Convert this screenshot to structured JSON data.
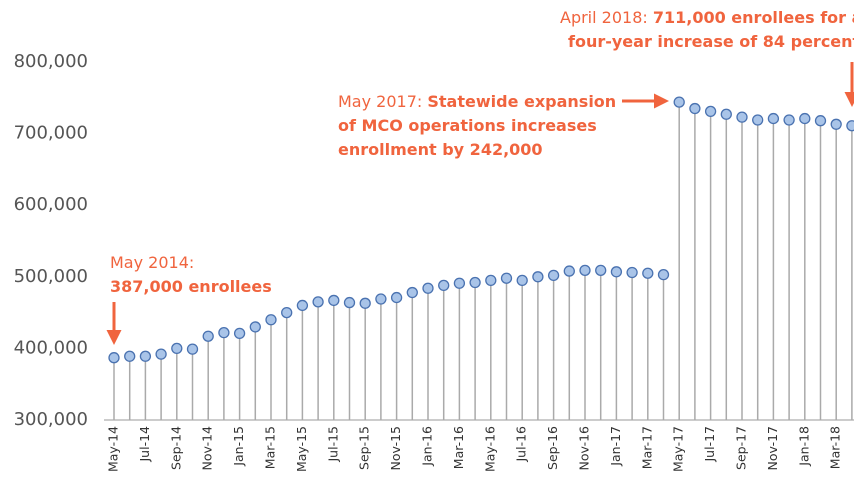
{
  "chart_data": {
    "type": "lollipop",
    "categories": [
      "May-14",
      null,
      "Jul-14",
      null,
      "Sep-14",
      null,
      "Nov-14",
      null,
      "Jan-15",
      null,
      "Mar-15",
      null,
      "May-15",
      null,
      "Jul-15",
      null,
      "Sep-15",
      null,
      "Nov-15",
      null,
      "Jan-16",
      null,
      "Mar-16",
      null,
      "May-16",
      null,
      "Jul-16",
      null,
      "Sep-16",
      null,
      "Nov-16",
      null,
      "Jan-17",
      null,
      "Mar-17",
      null,
      "May-17",
      null,
      "Jul-17",
      null,
      "Sep-17",
      null,
      "Nov-17",
      null,
      "Jan-18",
      null,
      "Mar-18",
      null
    ],
    "values": [
      387000,
      389000,
      389000,
      392000,
      400000,
      399000,
      417000,
      422000,
      421000,
      430000,
      440000,
      450000,
      460000,
      465000,
      467000,
      464000,
      463000,
      469000,
      471000,
      478000,
      484000,
      488000,
      491000,
      492000,
      495000,
      498000,
      495000,
      500000,
      502000,
      508000,
      509000,
      509000,
      507000,
      506000,
      505000,
      503000,
      744000,
      735000,
      731000,
      727000,
      723000,
      719000,
      721000,
      719000,
      721000,
      718000,
      713000,
      711000
    ],
    "color": "#a9c4e8",
    "ylim": [
      300000,
      800000
    ],
    "yticks": [
      {
        "value": 300000,
        "label": "300,000"
      },
      {
        "value": 400000,
        "label": "400,000"
      },
      {
        "value": 500000,
        "label": "500,000"
      },
      {
        "value": 600000,
        "label": "600,000"
      },
      {
        "value": 700000,
        "label": "700,000"
      },
      {
        "value": 800000,
        "label": "800,000"
      }
    ],
    "annotations": [
      {
        "lead": "May 2014:",
        "lines": [
          "387,000 enrollees"
        ]
      },
      {
        "lead": "May 2017:",
        "lines": [
          "Statewide expansion",
          "of MCO operations increases",
          "enrollment by 242,000"
        ]
      },
      {
        "lead": "April 2018:",
        "lines": [
          "711,000 enrollees for a",
          "four-year increase of 84 percent"
        ]
      }
    ]
  }
}
